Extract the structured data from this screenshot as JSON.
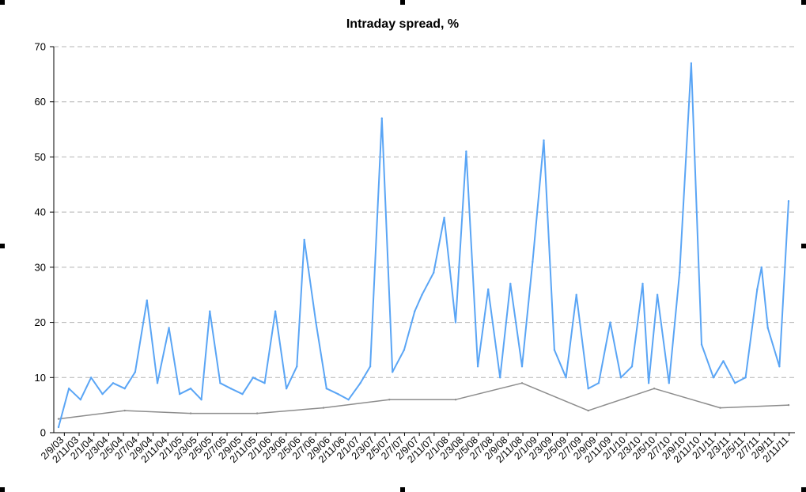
{
  "chart_data": {
    "type": "line",
    "title": "Intraday spread, %",
    "xlabel": "",
    "ylabel": "",
    "ylim": [
      0,
      70
    ],
    "yticks": [
      0,
      10,
      20,
      30,
      40,
      50,
      60,
      70
    ],
    "grid": "horizontal dashed",
    "legend": "none",
    "x_tick_labels": [
      "2/9/03",
      "2/11/03",
      "2/1/04",
      "2/3/04",
      "2/5/04",
      "2/7/04",
      "2/9/04",
      "2/11/04",
      "2/1/05",
      "2/3/05",
      "2/5/05",
      "2/7/05",
      "2/9/05",
      "2/11/05",
      "2/1/06",
      "2/3/06",
      "2/5/06",
      "2/7/06",
      "2/9/06",
      "2/11/06",
      "2/1/07",
      "2/3/07",
      "2/5/07",
      "2/7/07",
      "2/9/07",
      "2/11/07",
      "2/1/08",
      "2/3/08",
      "2/5/08",
      "2/7/08",
      "2/9/08",
      "2/11/08",
      "2/1/09",
      "2/3/09",
      "2/5/09",
      "2/7/09",
      "2/9/09",
      "2/11/09",
      "2/1/10",
      "2/3/10",
      "2/5/10",
      "2/7/10",
      "2/9/10",
      "2/11/10",
      "2/1/11",
      "2/3/11",
      "2/5/11",
      "2/7/11",
      "2/9/11",
      "2/11/11"
    ],
    "series": [
      {
        "color": "#5aa5f5",
        "x": [
          "2003-09-02",
          "2003-10-15",
          "2003-12-02",
          "2004-01-15",
          "2004-03-02",
          "2004-04-15",
          "2004-06-02",
          "2004-07-15",
          "2004-09-02",
          "2004-10-15",
          "2004-12-02",
          "2005-01-15",
          "2005-03-02",
          "2005-04-15",
          "2005-05-20",
          "2005-07-02",
          "2005-08-15",
          "2005-10-02",
          "2005-11-15",
          "2006-01-02",
          "2006-02-15",
          "2006-04-02",
          "2006-05-15",
          "2006-06-15",
          "2006-08-02",
          "2006-09-15",
          "2006-11-02",
          "2006-12-15",
          "2007-02-02",
          "2007-03-15",
          "2007-05-02",
          "2007-06-15",
          "2007-08-02",
          "2007-09-15",
          "2007-10-15",
          "2007-12-02",
          "2008-01-15",
          "2008-03-02",
          "2008-04-15",
          "2008-06-02",
          "2008-07-15",
          "2008-09-02",
          "2008-10-15",
          "2008-12-02",
          "2009-01-15",
          "2009-03-02",
          "2009-04-15",
          "2009-06-02",
          "2009-07-15",
          "2009-09-02",
          "2009-10-15",
          "2009-12-02",
          "2010-01-15",
          "2010-03-02",
          "2010-04-15",
          "2010-05-10",
          "2010-06-15",
          "2010-08-02",
          "2010-09-15",
          "2010-11-02",
          "2010-12-15",
          "2011-02-02",
          "2011-03-15",
          "2011-05-02",
          "2011-06-15",
          "2011-08-02",
          "2011-08-20",
          "2011-09-15",
          "2011-11-02",
          "2011-12-10"
        ],
        "values": [
          1,
          8,
          6,
          10,
          7,
          9,
          8,
          11,
          24,
          9,
          19,
          7,
          8,
          6,
          22,
          9,
          8,
          7,
          10,
          9,
          22,
          8,
          12,
          35,
          20,
          8,
          7,
          6,
          9,
          12,
          57,
          11,
          15,
          22,
          25,
          29,
          39,
          20,
          51,
          12,
          26,
          10,
          27,
          12,
          31,
          53,
          15,
          10,
          25,
          8,
          9,
          20,
          10,
          12,
          27,
          9,
          25,
          9,
          29,
          67,
          16,
          10,
          13,
          9,
          10,
          26,
          30,
          19,
          12,
          42
        ]
      },
      {
        "color": "#8c8c8c",
        "x": [
          "2003-09-02",
          "2004-06-02",
          "2005-03-02",
          "2005-12-02",
          "2006-09-02",
          "2007-06-02",
          "2008-03-02",
          "2008-12-02",
          "2009-09-02",
          "2010-06-02",
          "2011-03-02",
          "2011-12-10"
        ],
        "values": [
          2.5,
          4,
          3.5,
          3.5,
          4.5,
          6,
          6,
          9,
          4,
          8,
          4.5,
          5
        ]
      }
    ]
  }
}
